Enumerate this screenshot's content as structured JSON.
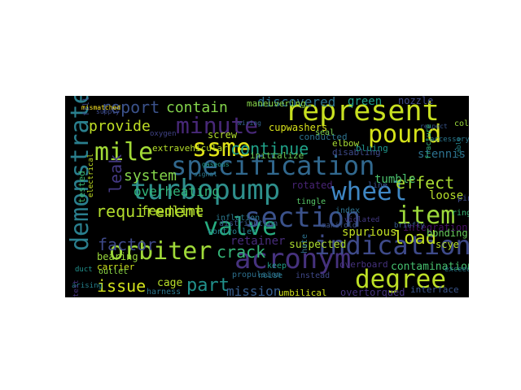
{
  "wordcloud": {
    "background": "#000000",
    "words": [
      {
        "text": "turbopump",
        "color": "#2e8f8c"
      },
      {
        "text": "specification",
        "color": "#31688e"
      },
      {
        "text": "demonstrate",
        "color": "#2a7f8e"
      },
      {
        "text": "orbiter",
        "color": "#a0da39"
      },
      {
        "text": "acronym",
        "color": "#46327e"
      },
      {
        "text": "section",
        "color": "#3b528b"
      },
      {
        "text": "indication",
        "color": "#3e4a89"
      },
      {
        "text": "represent",
        "color": "#c8e020"
      },
      {
        "text": "minute",
        "color": "#482878"
      },
      {
        "text": "degree",
        "color": "#bddf26"
      },
      {
        "text": "pound",
        "color": "#d5e21a"
      },
      {
        "text": "item",
        "color": "#9dd93b"
      },
      {
        "text": "valve",
        "color": "#27ad81"
      },
      {
        "text": "wheel",
        "color": "#3f87c4"
      },
      {
        "text": "ssme",
        "color": "#e2e418"
      },
      {
        "text": "mile",
        "color": "#a2da37"
      },
      {
        "text": "requirement",
        "color": "#b2dd2d"
      },
      {
        "text": "report",
        "color": "#3b528b"
      },
      {
        "text": "contain",
        "color": "#84d44b"
      },
      {
        "text": "provide",
        "color": "#c0df25"
      },
      {
        "text": "continue",
        "color": "#1fa187"
      },
      {
        "text": "system",
        "color": "#84d44b"
      },
      {
        "text": "effect",
        "color": "#aadc32"
      },
      {
        "text": "crack",
        "color": "#35b779"
      },
      {
        "text": "factor",
        "color": "#3e4989"
      },
      {
        "text": "issue",
        "color": "#d2e21b"
      },
      {
        "text": "part",
        "color": "#21918c"
      },
      {
        "text": "load",
        "color": "#c2df23"
      },
      {
        "text": "leak",
        "color": "#443983"
      },
      {
        "text": "discovered",
        "color": "#2c728e"
      },
      {
        "text": "green",
        "color": "#1f9e89"
      },
      {
        "text": "overheating",
        "color": "#31b57b"
      },
      {
        "text": "feedline",
        "color": "#b5de2b"
      },
      {
        "text": "cage",
        "color": "#b8de29"
      },
      {
        "text": "mission",
        "color": "#365d8d"
      },
      {
        "text": "retainer",
        "color": "#472c7a"
      },
      {
        "text": "suspected",
        "color": "#addc30"
      },
      {
        "text": "spurious",
        "color": "#c2df23"
      },
      {
        "text": "stennis",
        "color": "#2d718e"
      },
      {
        "text": "loose",
        "color": "#b5de2b"
      },
      {
        "text": "contamination",
        "color": "#46c06f"
      },
      {
        "text": "cupwashers",
        "color": "#d8e219"
      },
      {
        "text": "screw",
        "color": "#b2dd2d"
      },
      {
        "text": "bearing",
        "color": "#9bd93c"
      },
      {
        "text": "carrier",
        "color": "#cde11d"
      },
      {
        "text": "umbilical",
        "color": "#d2e21b"
      },
      {
        "text": "interface",
        "color": "#3a548c"
      },
      {
        "text": "rotated",
        "color": "#482475"
      },
      {
        "text": "tumble",
        "color": "#4ac16d"
      },
      {
        "text": "integration",
        "color": "#471063"
      },
      {
        "text": "nozzle",
        "color": "#3e4a89"
      },
      {
        "text": "elbow",
        "color": "#a8db34"
      },
      {
        "text": "bonding",
        "color": "#67cc5c"
      },
      {
        "text": "scye",
        "color": "#b5de2b"
      },
      {
        "text": "conducted",
        "color": "#2c728e"
      },
      {
        "text": "tested",
        "color": "#3dbc74"
      },
      {
        "text": "maneuvering",
        "color": "#87d549"
      },
      {
        "text": "initialize",
        "color": "#6ece58"
      },
      {
        "text": "disabling",
        "color": "#3e4a89"
      },
      {
        "text": "bluing",
        "color": "#1f958b"
      },
      {
        "text": "tingle",
        "color": "#56c667"
      },
      {
        "text": "hate",
        "color": "#2c718e"
      },
      {
        "text": "noise",
        "color": "#29798e"
      },
      {
        "text": "keep",
        "color": "#1f9e89"
      },
      {
        "text": "overboard",
        "color": "#46327e"
      },
      {
        "text": "overtorqued",
        "color": "#46337e"
      },
      {
        "text": "index",
        "color": "#2d718e"
      },
      {
        "text": "instead",
        "color": "#3f4788"
      },
      {
        "text": "inflation",
        "color": "#2a788e"
      },
      {
        "text": "extravehicular",
        "color": "#b5de2b"
      },
      {
        "text": "controller",
        "color": "#27808e"
      },
      {
        "text": "distribution",
        "color": "#38588c"
      },
      {
        "text": "propulsion",
        "color": "#2d708e"
      },
      {
        "text": "harness",
        "color": "#2a768e"
      },
      {
        "text": "arising",
        "color": "#26828e"
      },
      {
        "text": "outlet",
        "color": "#8bd646"
      },
      {
        "text": "seal",
        "color": "#7ad151"
      },
      {
        "text": "mismatched",
        "color": "#fde725"
      },
      {
        "text": "signal",
        "color": "#2a788e"
      },
      {
        "text": "oxygen",
        "color": "#414487"
      },
      {
        "text": "wiring",
        "color": "#32648e"
      },
      {
        "text": "violated",
        "color": "#443983"
      },
      {
        "text": "briefly",
        "color": "#375b8d"
      },
      {
        "text": "manifold",
        "color": "#3b528b"
      },
      {
        "text": "exceeded",
        "color": "#287d8e"
      },
      {
        "text": "electrical",
        "color": "#c2df23"
      },
      {
        "text": "fill",
        "color": "#3e4a89"
      },
      {
        "text": "supply",
        "color": "#3e4a89"
      },
      {
        "text": "cable",
        "color": "#24878e"
      },
      {
        "text": "respect",
        "color": "#39568c"
      },
      {
        "text": "gaseous",
        "color": "#1f9a8a"
      },
      {
        "text": "fracture",
        "color": "#2fb47c"
      },
      {
        "text": "accessory",
        "color": "#2a788e"
      },
      {
        "text": "collar",
        "color": "#9bd93c"
      },
      {
        "text": "test",
        "color": "#46337e"
      },
      {
        "text": "line",
        "color": "#3b528b"
      },
      {
        "text": "duct",
        "color": "#21918c"
      },
      {
        "text": "ring",
        "color": "#38b977"
      },
      {
        "text": "pin",
        "color": "#3e4a89"
      }
    ]
  }
}
